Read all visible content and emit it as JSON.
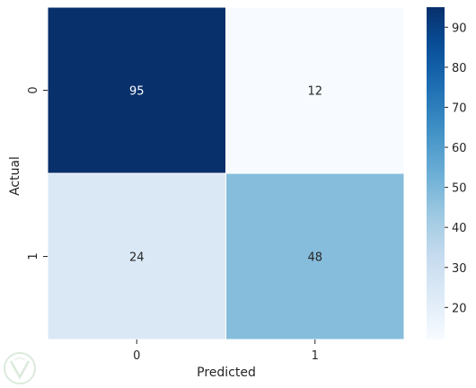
{
  "chart_data": {
    "type": "heatmap",
    "xlabel": "Predicted",
    "ylabel": "Actual",
    "x_categories": [
      "0",
      "1"
    ],
    "y_categories": [
      "0",
      "1"
    ],
    "values": [
      [
        95,
        12
      ],
      [
        24,
        48
      ]
    ],
    "colormap": "Blues",
    "colorbar": {
      "min": 12,
      "max": 95,
      "ticks": [
        20,
        30,
        40,
        50,
        60,
        70,
        80,
        90
      ]
    },
    "cell_borders": true,
    "border_color": "#ffffff"
  }
}
